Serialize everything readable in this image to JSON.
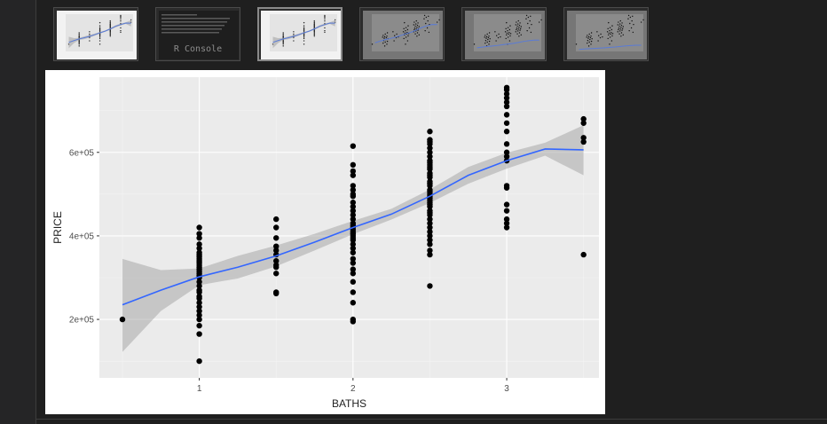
{
  "thumbnails": [
    {
      "kind": "plot",
      "label": ""
    },
    {
      "kind": "console",
      "label": "R Console"
    },
    {
      "kind": "plot",
      "label": ""
    },
    {
      "kind": "plot-dark",
      "label": ""
    },
    {
      "kind": "plot-dark",
      "label": ""
    },
    {
      "kind": "plot-dark",
      "label": ""
    }
  ],
  "selected_thumbnail": 2,
  "colors": {
    "panel_bg": "#ebebeb",
    "grid_major": "#ffffff",
    "point": "#000000",
    "smooth_line": "#3366ff",
    "ci_band": "#999999"
  },
  "chart_data": {
    "type": "scatter",
    "title": "",
    "xlabel": "BATHS",
    "ylabel": "PRICE",
    "xlim": [
      0.35,
      3.6
    ],
    "ylim": [
      60000,
      780000
    ],
    "xticks": [
      1,
      2,
      3
    ],
    "xtick_labels": [
      "1",
      "2",
      "3"
    ],
    "yticks": [
      200000,
      400000,
      600000
    ],
    "ytick_labels": [
      "2e+05",
      "4e+05",
      "6e+05"
    ],
    "grid": true,
    "points": [
      [
        0.5,
        200000
      ],
      [
        1,
        100000
      ],
      [
        1,
        165000
      ],
      [
        1,
        185000
      ],
      [
        1,
        200000
      ],
      [
        1,
        210000
      ],
      [
        1,
        220000
      ],
      [
        1,
        230000
      ],
      [
        1,
        240000
      ],
      [
        1,
        250000
      ],
      [
        1,
        255000
      ],
      [
        1,
        265000
      ],
      [
        1,
        270000
      ],
      [
        1,
        280000
      ],
      [
        1,
        290000
      ],
      [
        1,
        300000
      ],
      [
        1,
        305000
      ],
      [
        1,
        310000
      ],
      [
        1,
        315000
      ],
      [
        1,
        320000
      ],
      [
        1,
        325000
      ],
      [
        1,
        330000
      ],
      [
        1,
        335000
      ],
      [
        1,
        340000
      ],
      [
        1,
        345000
      ],
      [
        1,
        350000
      ],
      [
        1,
        355000
      ],
      [
        1,
        360000
      ],
      [
        1,
        370000
      ],
      [
        1,
        380000
      ],
      [
        1,
        395000
      ],
      [
        1,
        405000
      ],
      [
        1,
        420000
      ],
      [
        1.5,
        262000
      ],
      [
        1.5,
        265000
      ],
      [
        1.5,
        310000
      ],
      [
        1.5,
        325000
      ],
      [
        1.5,
        330000
      ],
      [
        1.5,
        340000
      ],
      [
        1.5,
        355000
      ],
      [
        1.5,
        365000
      ],
      [
        1.5,
        375000
      ],
      [
        1.5,
        395000
      ],
      [
        1.5,
        420000
      ],
      [
        1.5,
        440000
      ],
      [
        2,
        195000
      ],
      [
        2,
        200000
      ],
      [
        2,
        240000
      ],
      [
        2,
        265000
      ],
      [
        2,
        290000
      ],
      [
        2,
        310000
      ],
      [
        2,
        320000
      ],
      [
        2,
        335000
      ],
      [
        2,
        345000
      ],
      [
        2,
        360000
      ],
      [
        2,
        370000
      ],
      [
        2,
        380000
      ],
      [
        2,
        390000
      ],
      [
        2,
        395000
      ],
      [
        2,
        400000
      ],
      [
        2,
        405000
      ],
      [
        2,
        410000
      ],
      [
        2,
        415000
      ],
      [
        2,
        420000
      ],
      [
        2,
        425000
      ],
      [
        2,
        430000
      ],
      [
        2,
        440000
      ],
      [
        2,
        450000
      ],
      [
        2,
        460000
      ],
      [
        2,
        470000
      ],
      [
        2,
        480000
      ],
      [
        2,
        495000
      ],
      [
        2,
        500000
      ],
      [
        2,
        510000
      ],
      [
        2,
        520000
      ],
      [
        2,
        545000
      ],
      [
        2,
        555000
      ],
      [
        2,
        570000
      ],
      [
        2,
        615000
      ],
      [
        2.5,
        280000
      ],
      [
        2.5,
        355000
      ],
      [
        2.5,
        365000
      ],
      [
        2.5,
        380000
      ],
      [
        2.5,
        390000
      ],
      [
        2.5,
        400000
      ],
      [
        2.5,
        410000
      ],
      [
        2.5,
        420000
      ],
      [
        2.5,
        430000
      ],
      [
        2.5,
        440000
      ],
      [
        2.5,
        450000
      ],
      [
        2.5,
        455000
      ],
      [
        2.5,
        460000
      ],
      [
        2.5,
        470000
      ],
      [
        2.5,
        475000
      ],
      [
        2.5,
        480000
      ],
      [
        2.5,
        485000
      ],
      [
        2.5,
        490000
      ],
      [
        2.5,
        495000
      ],
      [
        2.5,
        500000
      ],
      [
        2.5,
        505000
      ],
      [
        2.5,
        510000
      ],
      [
        2.5,
        520000
      ],
      [
        2.5,
        525000
      ],
      [
        2.5,
        530000
      ],
      [
        2.5,
        540000
      ],
      [
        2.5,
        545000
      ],
      [
        2.5,
        550000
      ],
      [
        2.5,
        560000
      ],
      [
        2.5,
        565000
      ],
      [
        2.5,
        570000
      ],
      [
        2.5,
        575000
      ],
      [
        2.5,
        580000
      ],
      [
        2.5,
        590000
      ],
      [
        2.5,
        600000
      ],
      [
        2.5,
        610000
      ],
      [
        2.5,
        620000
      ],
      [
        2.5,
        625000
      ],
      [
        2.5,
        630000
      ],
      [
        2.5,
        650000
      ],
      [
        3,
        420000
      ],
      [
        3,
        430000
      ],
      [
        3,
        440000
      ],
      [
        3,
        460000
      ],
      [
        3,
        475000
      ],
      [
        3,
        515000
      ],
      [
        3,
        520000
      ],
      [
        3,
        580000
      ],
      [
        3,
        590000
      ],
      [
        3,
        600000
      ],
      [
        3,
        620000
      ],
      [
        3,
        650000
      ],
      [
        3,
        670000
      ],
      [
        3,
        690000
      ],
      [
        3,
        710000
      ],
      [
        3,
        720000
      ],
      [
        3,
        730000
      ],
      [
        3,
        740000
      ],
      [
        3,
        750000
      ],
      [
        3,
        755000
      ],
      [
        3.5,
        355000
      ],
      [
        3.5,
        625000
      ],
      [
        3.5,
        635000
      ],
      [
        3.5,
        670000
      ],
      [
        3.5,
        680000
      ]
    ],
    "smooth": {
      "x": [
        0.5,
        0.75,
        1.0,
        1.25,
        1.5,
        1.75,
        2.0,
        2.25,
        2.5,
        2.75,
        3.0,
        3.25,
        3.5
      ],
      "y": [
        235000,
        270000,
        302000,
        325000,
        352000,
        385000,
        420000,
        452000,
        495000,
        545000,
        580000,
        608000,
        606000
      ],
      "lower": [
        122000,
        220000,
        282000,
        298000,
        327000,
        365000,
        404000,
        439000,
        479000,
        525000,
        561000,
        592000,
        545000
      ],
      "upper": [
        345000,
        318000,
        322000,
        352000,
        377000,
        405000,
        436000,
        465000,
        511000,
        565000,
        599000,
        623000,
        665000
      ]
    }
  }
}
